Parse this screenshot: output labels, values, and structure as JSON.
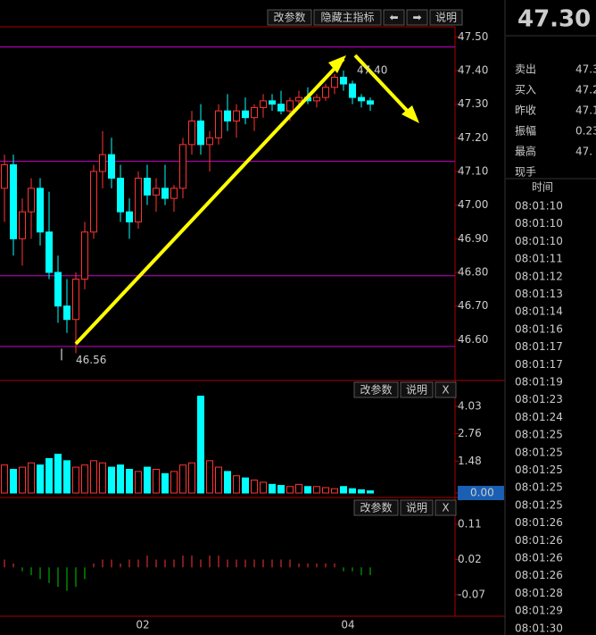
{
  "toolbar": {
    "main": [
      "改参数",
      "隐藏主指标",
      "⬅",
      "➡",
      "说明"
    ],
    "volume": [
      "改参数",
      "说明",
      "X"
    ],
    "macd": [
      "改参数",
      "说明",
      "X"
    ]
  },
  "chart_data": {
    "type": "candlestick",
    "ylim": [
      46.5,
      47.53
    ],
    "yticks": [
      {
        "value": 47.5,
        "label": "47.50"
      },
      {
        "value": 47.4,
        "label": "47.40"
      },
      {
        "value": 47.3,
        "label": "47.30"
      },
      {
        "value": 47.2,
        "label": "47.20"
      },
      {
        "value": 47.1,
        "label": "47.10"
      },
      {
        "value": 47,
        "label": "47.00"
      },
      {
        "value": 46.9,
        "label": "46.90"
      },
      {
        "value": 46.8,
        "label": "46.80"
      },
      {
        "value": 46.7,
        "label": "46.70"
      },
      {
        "value": 46.6,
        "label": "46.60"
      }
    ],
    "levels": [
      47.47,
      47.13,
      46.79,
      46.58
    ],
    "annotations": [
      {
        "value": 47.4,
        "label": "47.40"
      },
      {
        "value": 46.56,
        "label": "46.56"
      }
    ],
    "x_labels": [
      "02",
      "04"
    ],
    "candles": [
      [
        47.05,
        47.15,
        46.95,
        47.12
      ],
      [
        47.12,
        47.15,
        46.85,
        46.9
      ],
      [
        46.9,
        47.02,
        46.82,
        46.98
      ],
      [
        46.98,
        47.08,
        46.9,
        47.05
      ],
      [
        47.05,
        47.08,
        46.88,
        46.92
      ],
      [
        46.92,
        47.04,
        46.78,
        46.8
      ],
      [
        46.8,
        46.85,
        46.65,
        46.7
      ],
      [
        46.7,
        46.78,
        46.62,
        46.66
      ],
      [
        46.66,
        46.8,
        46.56,
        46.78
      ],
      [
        46.78,
        46.95,
        46.75,
        46.92
      ],
      [
        46.92,
        47.12,
        46.9,
        47.1
      ],
      [
        47.1,
        47.22,
        47.05,
        47.15
      ],
      [
        47.15,
        47.2,
        47.05,
        47.08
      ],
      [
        47.08,
        47.12,
        46.95,
        46.98
      ],
      [
        46.98,
        47.02,
        46.9,
        46.95
      ],
      [
        46.95,
        47.1,
        46.93,
        47.08
      ],
      [
        47.08,
        47.12,
        47,
        47.03
      ],
      [
        47.03,
        47.08,
        46.98,
        47.05
      ],
      [
        47.05,
        47.12,
        47,
        47.02
      ],
      [
        47.02,
        47.06,
        46.98,
        47.05
      ],
      [
        47.05,
        47.2,
        47.02,
        47.18
      ],
      [
        47.18,
        47.28,
        47.15,
        47.25
      ],
      [
        47.25,
        47.3,
        47.15,
        47.18
      ],
      [
        47.18,
        47.22,
        47.1,
        47.2
      ],
      [
        47.2,
        47.3,
        47.18,
        47.28
      ],
      [
        47.28,
        47.33,
        47.22,
        47.25
      ],
      [
        47.25,
        47.3,
        47.2,
        47.28
      ],
      [
        47.28,
        47.32,
        47.24,
        47.26
      ],
      [
        47.26,
        47.3,
        47.22,
        47.29
      ],
      [
        47.29,
        47.33,
        47.26,
        47.31
      ],
      [
        47.31,
        47.33,
        47.28,
        47.3
      ],
      [
        47.3,
        47.34,
        47.27,
        47.28
      ],
      [
        47.28,
        47.32,
        47.25,
        47.31
      ],
      [
        47.31,
        47.34,
        47.29,
        47.32
      ],
      [
        47.32,
        47.35,
        47.3,
        47.31
      ],
      [
        47.31,
        47.33,
        47.29,
        47.32
      ],
      [
        47.32,
        47.36,
        47.31,
        47.35
      ],
      [
        47.35,
        47.39,
        47.33,
        47.38
      ],
      [
        47.38,
        47.4,
        47.34,
        47.36
      ],
      [
        47.36,
        47.37,
        47.3,
        47.32
      ],
      [
        47.32,
        47.33,
        47.29,
        47.31
      ],
      [
        47.31,
        47.32,
        47.28,
        47.3
      ]
    ],
    "volume": {
      "ylim": [
        0,
        4.98
      ],
      "yticks": [
        4.03,
        2.76,
        1.48,
        {
          "value": 0,
          "label": "0.00"
        }
      ],
      "values": [
        1.3,
        1.1,
        1.2,
        1.4,
        1.3,
        1.6,
        1.8,
        1.5,
        1.2,
        1.3,
        1.5,
        1.4,
        1.2,
        1.3,
        1.1,
        1.0,
        1.2,
        1.1,
        0.9,
        1.0,
        1.3,
        1.4,
        4.5,
        1.5,
        1.2,
        1.0,
        0.8,
        0.7,
        0.6,
        0.5,
        0.4,
        0.35,
        0.3,
        0.4,
        0.3,
        0.3,
        0.25,
        0.2,
        0.3,
        0.2,
        0.15,
        0.1
      ]
    },
    "macd": {
      "ylim": [
        -0.125,
        0.167
      ],
      "yticks": [
        0.11,
        0.02,
        -0.07
      ],
      "values": [
        0.02,
        0.01,
        -0.01,
        -0.02,
        -0.03,
        -0.04,
        -0.05,
        -0.06,
        -0.05,
        -0.03,
        0.01,
        0.02,
        0.02,
        0.01,
        0.02,
        0.02,
        0.03,
        0.02,
        0.02,
        0.02,
        0.03,
        0.03,
        0.02,
        0.03,
        0.03,
        0.02,
        0.02,
        0.02,
        0.02,
        0.02,
        0.02,
        0.02,
        0.02,
        0.01,
        0.01,
        0.01,
        0.01,
        0.01,
        -0.01,
        -0.01,
        -0.02,
        -0.02
      ]
    }
  },
  "quote": {
    "price": "47.30",
    "rows": [
      [
        "卖出",
        "47.3"
      ],
      [
        "买入",
        "47.2"
      ],
      [
        "昨收",
        "47.1"
      ],
      [
        "振幅",
        "0.23"
      ],
      [
        "最高",
        "47."
      ],
      [
        "现手",
        ""
      ]
    ],
    "time_header": "时间",
    "times": [
      "08:01:10",
      "08:01:10",
      "08:01:10",
      "08:01:11",
      "08:01:12",
      "08:01:13",
      "08:01:14",
      "08:01:16",
      "08:01:17",
      "08:01:17",
      "08:01:19",
      "08:01:23",
      "08:01:24",
      "08:01:25",
      "08:01:25",
      "08:01:25",
      "08:01:25",
      "08:01:25",
      "08:01:26",
      "08:01:26",
      "08:01:26",
      "08:01:26",
      "08:01:28",
      "08:01:29",
      "08:01:30"
    ]
  }
}
